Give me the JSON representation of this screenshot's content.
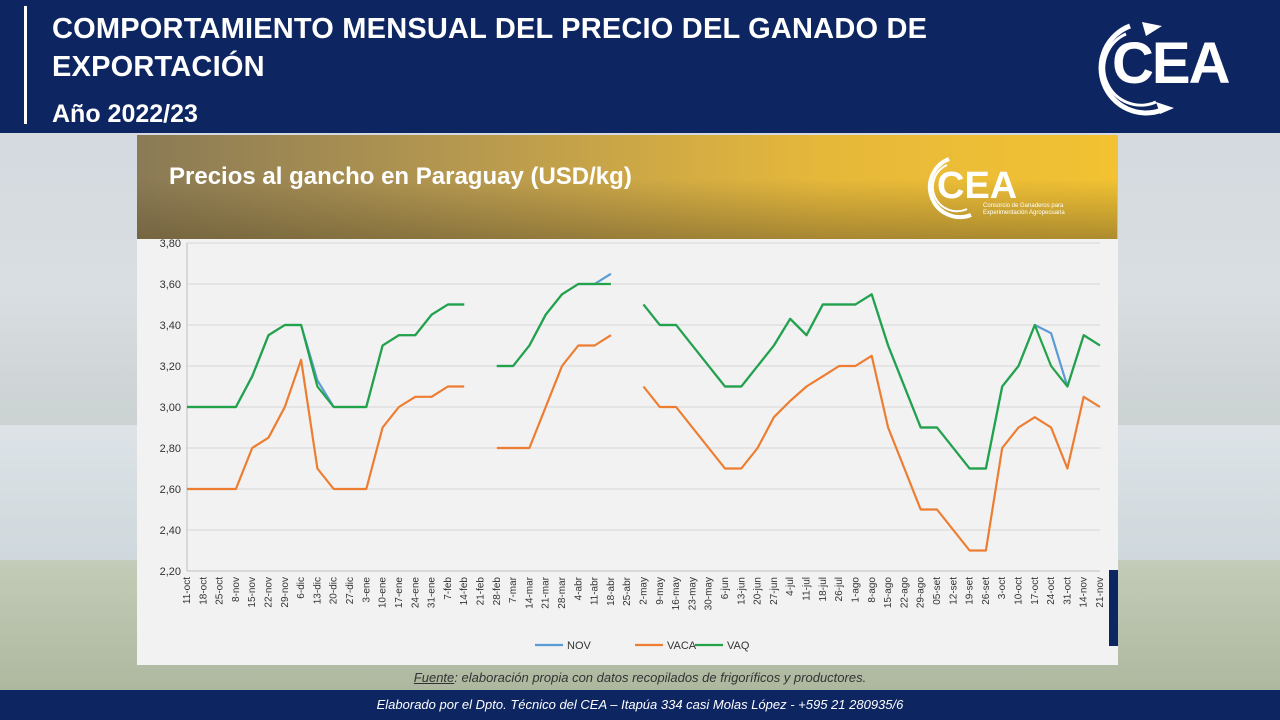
{
  "header": {
    "title": "COMPORTAMIENTO MENSUAL DEL PRECIO DEL GANADO DE EXPORTACIÓN",
    "subtitle": "Año 2022/23",
    "logo_text": "CEA"
  },
  "banner": {
    "title": "Precios al gancho en Paraguay (USD/kg)",
    "logo_text": "CEA",
    "logo_tagline": "Consorcio de Ganaderos para Experimentación Agropecuaria"
  },
  "source": {
    "label": "Fuente",
    "text": ": elaboración propia con datos recopilados de frigoríficos y productores."
  },
  "footer": {
    "text": "Elaborado por el Dpto. Técnico del CEA – Itapúa 334 casi Molas López - +595 21 280935/6"
  },
  "colors": {
    "navy": "#0d2561",
    "NOV": "#5b9bd5",
    "VACA": "#ed7d31",
    "VAQ": "#22a348"
  },
  "chart_data": {
    "type": "line",
    "ylim": [
      2.2,
      3.8
    ],
    "yticks": [
      "2,20",
      "2,40",
      "2,60",
      "2,80",
      "3,00",
      "3,20",
      "3,40",
      "3,60",
      "3,80"
    ],
    "grid": true,
    "legend_position": "bottom",
    "categories": [
      "11-oct",
      "18-oct",
      "25-oct",
      "8-nov",
      "15-nov",
      "22-nov",
      "29-nov",
      "6-dic",
      "13-dic",
      "20-dic",
      "27-dic",
      "3-ene",
      "10-ene",
      "17-ene",
      "24-ene",
      "31-ene",
      "7-feb",
      "14-feb",
      "21-feb",
      "28-feb",
      "7-mar",
      "14-mar",
      "21-mar",
      "28-mar",
      "4-abr",
      "11-abr",
      "18-abr",
      "25-abr",
      "2-may",
      "9-may",
      "16-may",
      "23-may",
      "30-may",
      "6-jun",
      "13-jun",
      "20-jun",
      "27-jun",
      "4-jul",
      "11-jul",
      "18-jul",
      "26-jul",
      "1-ago",
      "8-ago",
      "15-ago",
      "22-ago",
      "29-ago",
      "05-set",
      "12-set",
      "19-set",
      "26-set",
      "3-oct",
      "10-oct",
      "17-oct",
      "24-oct",
      "31-oct",
      "14-nov",
      "21-nov"
    ],
    "series": [
      {
        "name": "NOV",
        "values": [
          3.0,
          3.0,
          3.0,
          3.0,
          3.15,
          3.35,
          3.4,
          3.4,
          3.13,
          3.0,
          3.0,
          3.0,
          3.3,
          3.35,
          3.35,
          3.45,
          3.5,
          3.5,
          null,
          3.2,
          3.2,
          3.3,
          3.45,
          3.55,
          3.6,
          3.6,
          3.65,
          null,
          3.5,
          3.4,
          3.4,
          3.3,
          3.2,
          3.1,
          3.1,
          3.2,
          3.3,
          3.43,
          3.35,
          3.5,
          3.5,
          3.5,
          3.55,
          3.3,
          3.1,
          2.9,
          2.9,
          2.8,
          2.7,
          2.7,
          3.1,
          3.2,
          3.4,
          3.36,
          3.1,
          3.35,
          3.3
        ]
      },
      {
        "name": "VACA",
        "values": [
          2.6,
          2.6,
          2.6,
          2.6,
          2.8,
          2.85,
          3.0,
          3.23,
          2.7,
          2.6,
          2.6,
          2.6,
          2.9,
          3.0,
          3.05,
          3.05,
          3.1,
          3.1,
          null,
          2.8,
          2.8,
          2.8,
          3.0,
          3.2,
          3.3,
          3.3,
          3.35,
          null,
          3.1,
          3.0,
          3.0,
          2.9,
          2.8,
          2.7,
          2.7,
          2.8,
          2.95,
          3.03,
          3.1,
          3.15,
          3.2,
          3.2,
          3.25,
          2.9,
          2.7,
          2.5,
          2.5,
          2.4,
          2.3,
          2.3,
          2.8,
          2.9,
          2.95,
          2.9,
          2.7,
          3.05,
          3.0
        ]
      },
      {
        "name": "VAQ",
        "values": [
          3.0,
          3.0,
          3.0,
          3.0,
          3.15,
          3.35,
          3.4,
          3.4,
          3.1,
          3.0,
          3.0,
          3.0,
          3.3,
          3.35,
          3.35,
          3.45,
          3.5,
          3.5,
          null,
          3.2,
          3.2,
          3.3,
          3.45,
          3.55,
          3.6,
          3.6,
          3.6,
          null,
          3.5,
          3.4,
          3.4,
          3.3,
          3.2,
          3.1,
          3.1,
          3.2,
          3.3,
          3.43,
          3.35,
          3.5,
          3.5,
          3.5,
          3.55,
          3.3,
          3.1,
          2.9,
          2.9,
          2.8,
          2.7,
          2.7,
          3.1,
          3.2,
          3.4,
          3.2,
          3.1,
          3.35,
          3.3
        ]
      }
    ]
  }
}
